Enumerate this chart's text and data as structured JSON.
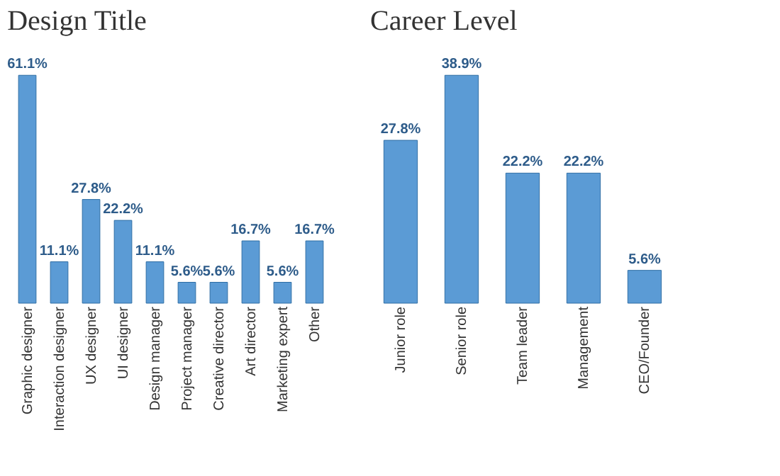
{
  "chart_data": [
    {
      "type": "bar",
      "title": "Design Title",
      "categories": [
        "Graphic designer",
        "Interaction designer",
        "UX designer",
        "UI designer",
        "Design manager",
        "Project manager",
        "Creative director",
        "Art director",
        "Marketing expert",
        "Other"
      ],
      "values": [
        61.1,
        11.1,
        27.8,
        22.2,
        11.1,
        5.6,
        5.6,
        16.7,
        5.6,
        16.7
      ],
      "value_labels": [
        "61.1%",
        "11.1%",
        "27.8%",
        "22.2%",
        "11.1%",
        "5.6%",
        "5.6%",
        "16.7%",
        "5.6%",
        "16.7%"
      ],
      "color": "#5b9bd5"
    },
    {
      "type": "bar",
      "title": "Career Level",
      "categories": [
        "Junior role",
        "Senior role",
        "Team leader",
        "Management",
        "CEO/Founder"
      ],
      "values": [
        27.8,
        38.9,
        22.2,
        22.2,
        5.6
      ],
      "value_labels": [
        "27.8%",
        "38.9%",
        "22.2%",
        "22.2%",
        "5.6%"
      ],
      "color": "#5b9bd5"
    }
  ]
}
